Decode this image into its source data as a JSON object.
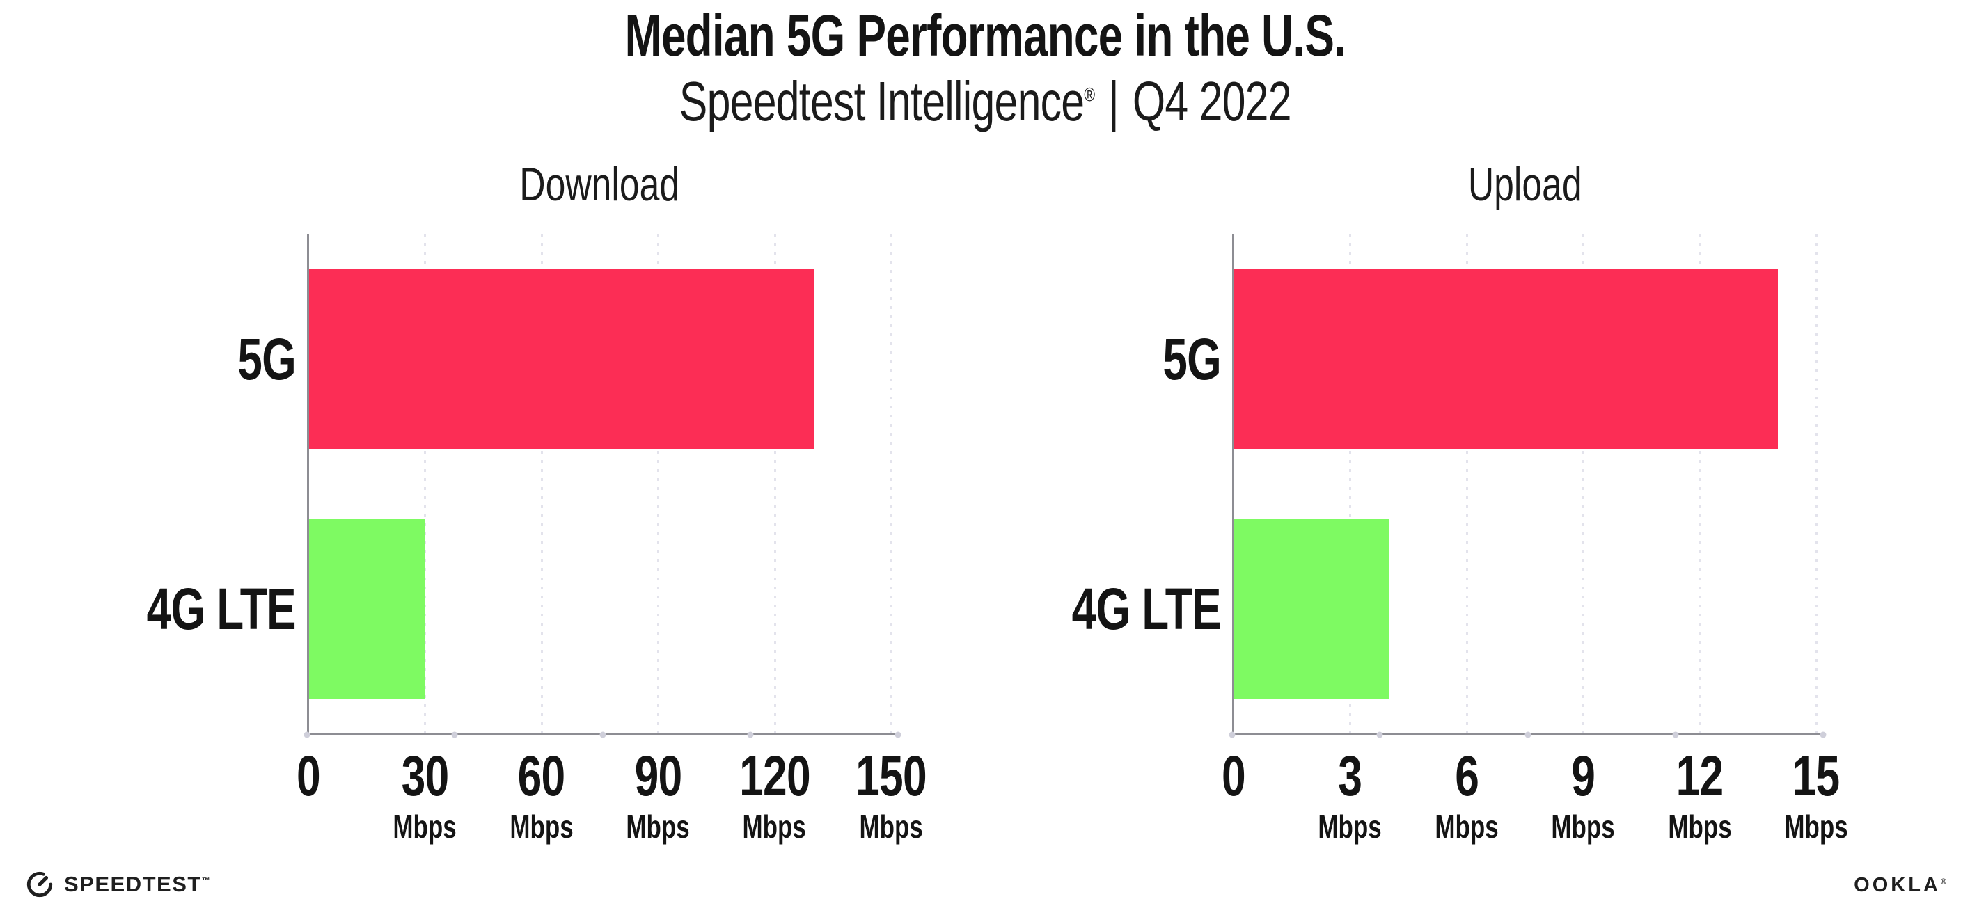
{
  "title": "Median 5G Performance in the U.S.",
  "subtitle": {
    "product": "Speedtest Intelligence",
    "registered_mark": "®",
    "divider": "|",
    "quarter": "Q4 2022"
  },
  "colors": {
    "bar_5g": "#FC2D55",
    "bar_4g_lte": "#7EFA62",
    "axis": "#8D8D93",
    "gridline": "#E3E3EC",
    "axis_dot": "#CFCFDA",
    "text": "#141414"
  },
  "chart_data": [
    {
      "type": "bar",
      "orientation": "horizontal",
      "title": "Download",
      "categories": [
        "5G",
        "4G LTE"
      ],
      "values": [
        130,
        30
      ],
      "unit": "Mbps",
      "xlim": [
        0,
        150
      ],
      "ticks": [
        0,
        30,
        60,
        90,
        120,
        150
      ],
      "tick_unit_label": "Mbps",
      "grid": "dotted-vertical",
      "legend": "none"
    },
    {
      "type": "bar",
      "orientation": "horizontal",
      "title": "Upload",
      "categories": [
        "5G",
        "4G LTE"
      ],
      "values": [
        14,
        4
      ],
      "unit": "Mbps",
      "xlim": [
        0,
        15
      ],
      "ticks": [
        0,
        3,
        6,
        9,
        12,
        15
      ],
      "tick_unit_label": "Mbps",
      "grid": "dotted-vertical",
      "legend": "none"
    }
  ],
  "footer": {
    "speedtest": "SPEEDTEST",
    "speedtest_mark": "™",
    "ookla": "OOKLA",
    "ookla_mark": "®"
  }
}
